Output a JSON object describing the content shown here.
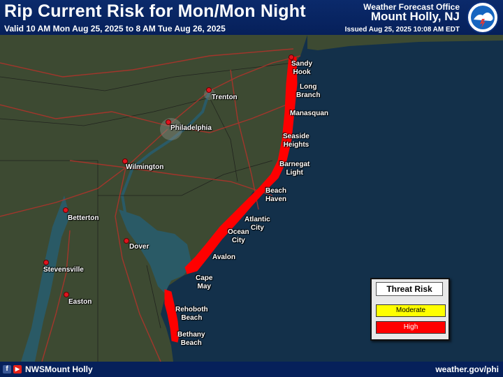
{
  "header": {
    "title": "Rip Current Risk for Mon/Mon Night",
    "valid": "Valid 10 AM Mon Aug 25, 2025 to 8 AM Tue Aug 26, 2025",
    "office_label": "Weather Forecast Office",
    "office_name": "Mount Holly, NJ",
    "issued": "Issued Aug 25, 2025 10:08 AM EDT"
  },
  "map": {
    "cities": [
      {
        "name": "Trenton"
      },
      {
        "name": "Philadelphia"
      },
      {
        "name": "Wilmington"
      },
      {
        "name": "Betterton"
      },
      {
        "name": "Dover"
      },
      {
        "name": "Stevensville"
      },
      {
        "name": "Easton"
      }
    ],
    "beaches": [
      {
        "name": "Sandy\nHook",
        "risk": "High"
      },
      {
        "name": "Long\nBranch",
        "risk": "High"
      },
      {
        "name": "Manasquan",
        "risk": "High"
      },
      {
        "name": "Seaside\nHeights",
        "risk": "High"
      },
      {
        "name": "Barnegat\nLight",
        "risk": "High"
      },
      {
        "name": "Beach\nHaven",
        "risk": "High"
      },
      {
        "name": "Atlantic\nCity",
        "risk": "High"
      },
      {
        "name": "Ocean\nCity",
        "risk": "High"
      },
      {
        "name": "Avalon",
        "risk": "High"
      },
      {
        "name": "Cape\nMay",
        "risk": "High"
      },
      {
        "name": "Rehoboth\nBeach",
        "risk": "High"
      },
      {
        "name": "Bethany\nBeach",
        "risk": "High"
      }
    ]
  },
  "legend": {
    "title": "Threat Risk",
    "levels": [
      {
        "label": "Moderate",
        "color": "#ffff00"
      },
      {
        "label": "High",
        "color": "#ff0000"
      }
    ]
  },
  "footer": {
    "facebook_glyph": "f",
    "youtube_glyph": "▶",
    "handle": "NWSMount Holly",
    "website": "weather.gov/phi"
  },
  "colors": {
    "header_bg": "#06205a",
    "high_risk": "#ff0000"
  }
}
